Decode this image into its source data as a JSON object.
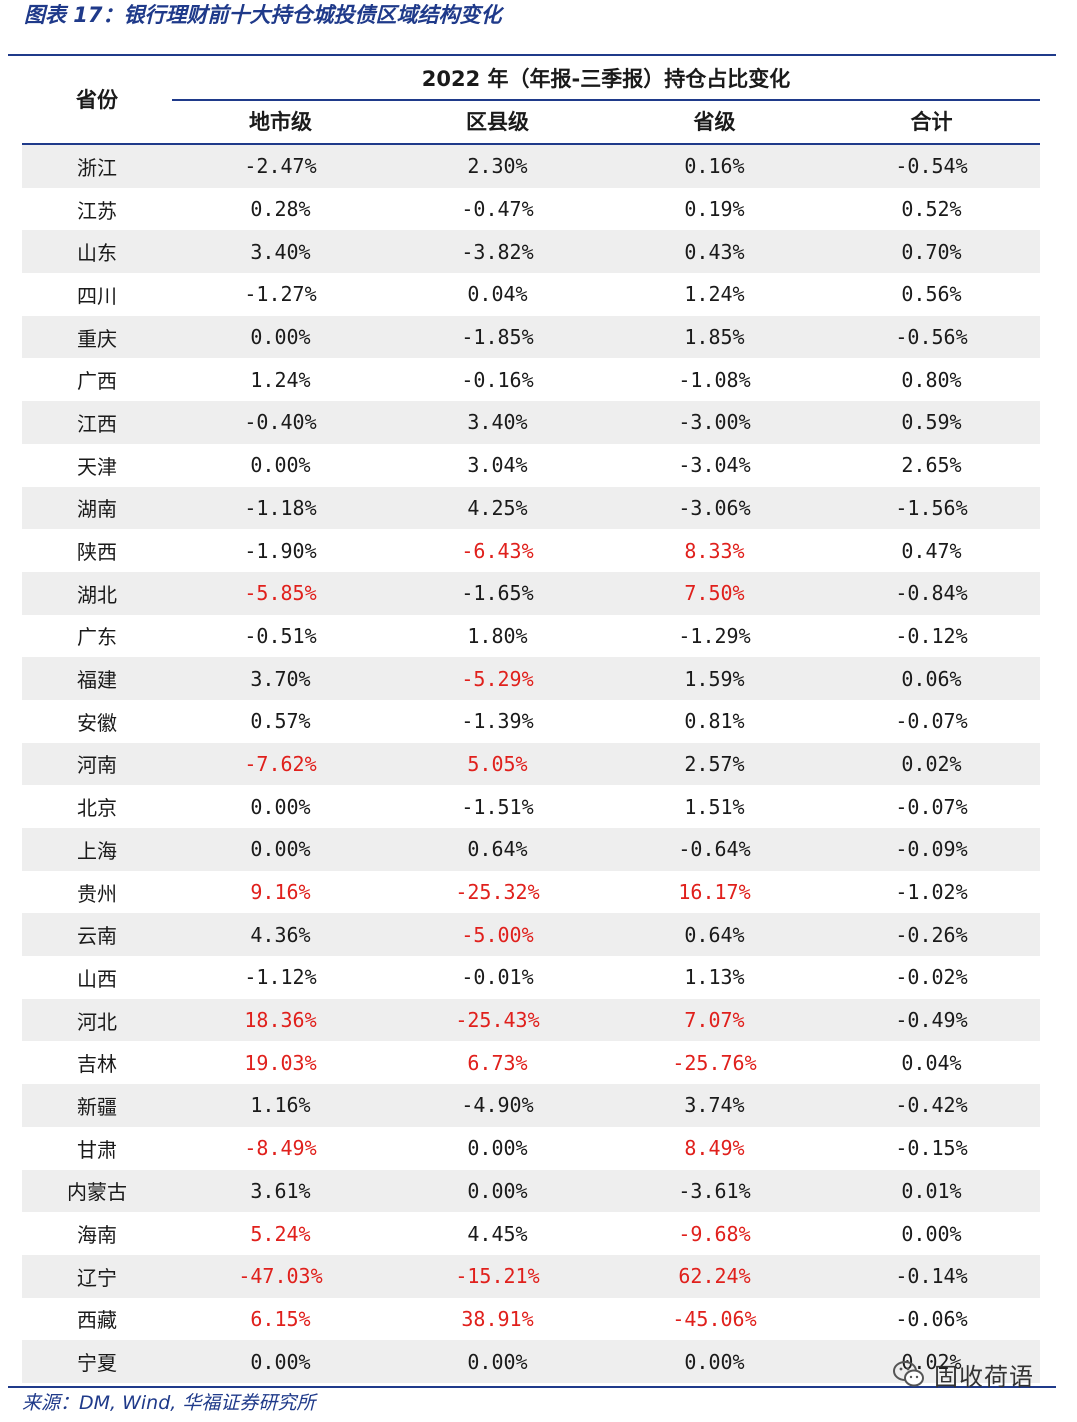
{
  "figure_title": "图表 17：银行理财前十大持仓城投债区域结构变化",
  "header": {
    "province": "省份",
    "group": "2022 年（年报-三季报）持仓占比变化",
    "columns": [
      "地市级",
      "区县级",
      "省级",
      "合计"
    ]
  },
  "highlight_color": "#e0201c",
  "rows": [
    {
      "province": "浙江",
      "values": [
        "-2.47%",
        "2.30%",
        "0.16%",
        "-0.54%"
      ],
      "highlight": [
        false,
        false,
        false,
        false
      ]
    },
    {
      "province": "江苏",
      "values": [
        "0.28%",
        "-0.47%",
        "0.19%",
        "0.52%"
      ],
      "highlight": [
        false,
        false,
        false,
        false
      ]
    },
    {
      "province": "山东",
      "values": [
        "3.40%",
        "-3.82%",
        "0.43%",
        "0.70%"
      ],
      "highlight": [
        false,
        false,
        false,
        false
      ]
    },
    {
      "province": "四川",
      "values": [
        "-1.27%",
        "0.04%",
        "1.24%",
        "0.56%"
      ],
      "highlight": [
        false,
        false,
        false,
        false
      ]
    },
    {
      "province": "重庆",
      "values": [
        "0.00%",
        "-1.85%",
        "1.85%",
        "-0.56%"
      ],
      "highlight": [
        false,
        false,
        false,
        false
      ]
    },
    {
      "province": "广西",
      "values": [
        "1.24%",
        "-0.16%",
        "-1.08%",
        "0.80%"
      ],
      "highlight": [
        false,
        false,
        false,
        false
      ]
    },
    {
      "province": "江西",
      "values": [
        "-0.40%",
        "3.40%",
        "-3.00%",
        "0.59%"
      ],
      "highlight": [
        false,
        false,
        false,
        false
      ]
    },
    {
      "province": "天津",
      "values": [
        "0.00%",
        "3.04%",
        "-3.04%",
        "2.65%"
      ],
      "highlight": [
        false,
        false,
        false,
        false
      ]
    },
    {
      "province": "湖南",
      "values": [
        "-1.18%",
        "4.25%",
        "-3.06%",
        "-1.56%"
      ],
      "highlight": [
        false,
        false,
        false,
        false
      ]
    },
    {
      "province": "陕西",
      "values": [
        "-1.90%",
        "-6.43%",
        "8.33%",
        "0.47%"
      ],
      "highlight": [
        false,
        true,
        true,
        false
      ]
    },
    {
      "province": "湖北",
      "values": [
        "-5.85%",
        "-1.65%",
        "7.50%",
        "-0.84%"
      ],
      "highlight": [
        true,
        false,
        true,
        false
      ]
    },
    {
      "province": "广东",
      "values": [
        "-0.51%",
        "1.80%",
        "-1.29%",
        "-0.12%"
      ],
      "highlight": [
        false,
        false,
        false,
        false
      ]
    },
    {
      "province": "福建",
      "values": [
        "3.70%",
        "-5.29%",
        "1.59%",
        "0.06%"
      ],
      "highlight": [
        false,
        true,
        false,
        false
      ]
    },
    {
      "province": "安徽",
      "values": [
        "0.57%",
        "-1.39%",
        "0.81%",
        "-0.07%"
      ],
      "highlight": [
        false,
        false,
        false,
        false
      ]
    },
    {
      "province": "河南",
      "values": [
        "-7.62%",
        "5.05%",
        "2.57%",
        "0.02%"
      ],
      "highlight": [
        true,
        true,
        false,
        false
      ]
    },
    {
      "province": "北京",
      "values": [
        "0.00%",
        "-1.51%",
        "1.51%",
        "-0.07%"
      ],
      "highlight": [
        false,
        false,
        false,
        false
      ]
    },
    {
      "province": "上海",
      "values": [
        "0.00%",
        "0.64%",
        "-0.64%",
        "-0.09%"
      ],
      "highlight": [
        false,
        false,
        false,
        false
      ]
    },
    {
      "province": "贵州",
      "values": [
        "9.16%",
        "-25.32%",
        "16.17%",
        "-1.02%"
      ],
      "highlight": [
        true,
        true,
        true,
        false
      ]
    },
    {
      "province": "云南",
      "values": [
        "4.36%",
        "-5.00%",
        "0.64%",
        "-0.26%"
      ],
      "highlight": [
        false,
        true,
        false,
        false
      ]
    },
    {
      "province": "山西",
      "values": [
        "-1.12%",
        "-0.01%",
        "1.13%",
        "-0.02%"
      ],
      "highlight": [
        false,
        false,
        false,
        false
      ]
    },
    {
      "province": "河北",
      "values": [
        "18.36%",
        "-25.43%",
        "7.07%",
        "-0.49%"
      ],
      "highlight": [
        true,
        true,
        true,
        false
      ]
    },
    {
      "province": "吉林",
      "values": [
        "19.03%",
        "6.73%",
        "-25.76%",
        "0.04%"
      ],
      "highlight": [
        true,
        true,
        true,
        false
      ]
    },
    {
      "province": "新疆",
      "values": [
        "1.16%",
        "-4.90%",
        "3.74%",
        "-0.42%"
      ],
      "highlight": [
        false,
        false,
        false,
        false
      ]
    },
    {
      "province": "甘肃",
      "values": [
        "-8.49%",
        "0.00%",
        "8.49%",
        "-0.15%"
      ],
      "highlight": [
        true,
        false,
        true,
        false
      ]
    },
    {
      "province": "内蒙古",
      "values": [
        "3.61%",
        "0.00%",
        "-3.61%",
        "0.01%"
      ],
      "highlight": [
        false,
        false,
        false,
        false
      ]
    },
    {
      "province": "海南",
      "values": [
        "5.24%",
        "4.45%",
        "-9.68%",
        "0.00%"
      ],
      "highlight": [
        true,
        false,
        true,
        false
      ]
    },
    {
      "province": "辽宁",
      "values": [
        "-47.03%",
        "-15.21%",
        "62.24%",
        "-0.14%"
      ],
      "highlight": [
        true,
        true,
        true,
        false
      ]
    },
    {
      "province": "西藏",
      "values": [
        "6.15%",
        "38.91%",
        "-45.06%",
        "-0.06%"
      ],
      "highlight": [
        true,
        true,
        true,
        false
      ]
    },
    {
      "province": "宁夏",
      "values": [
        "0.00%",
        "0.00%",
        "0.00%",
        "0.02%"
      ],
      "highlight": [
        false,
        false,
        false,
        false
      ]
    }
  ],
  "source": "来源：DM, Wind, 华福证券研究所",
  "watermark": "固收荷语"
}
